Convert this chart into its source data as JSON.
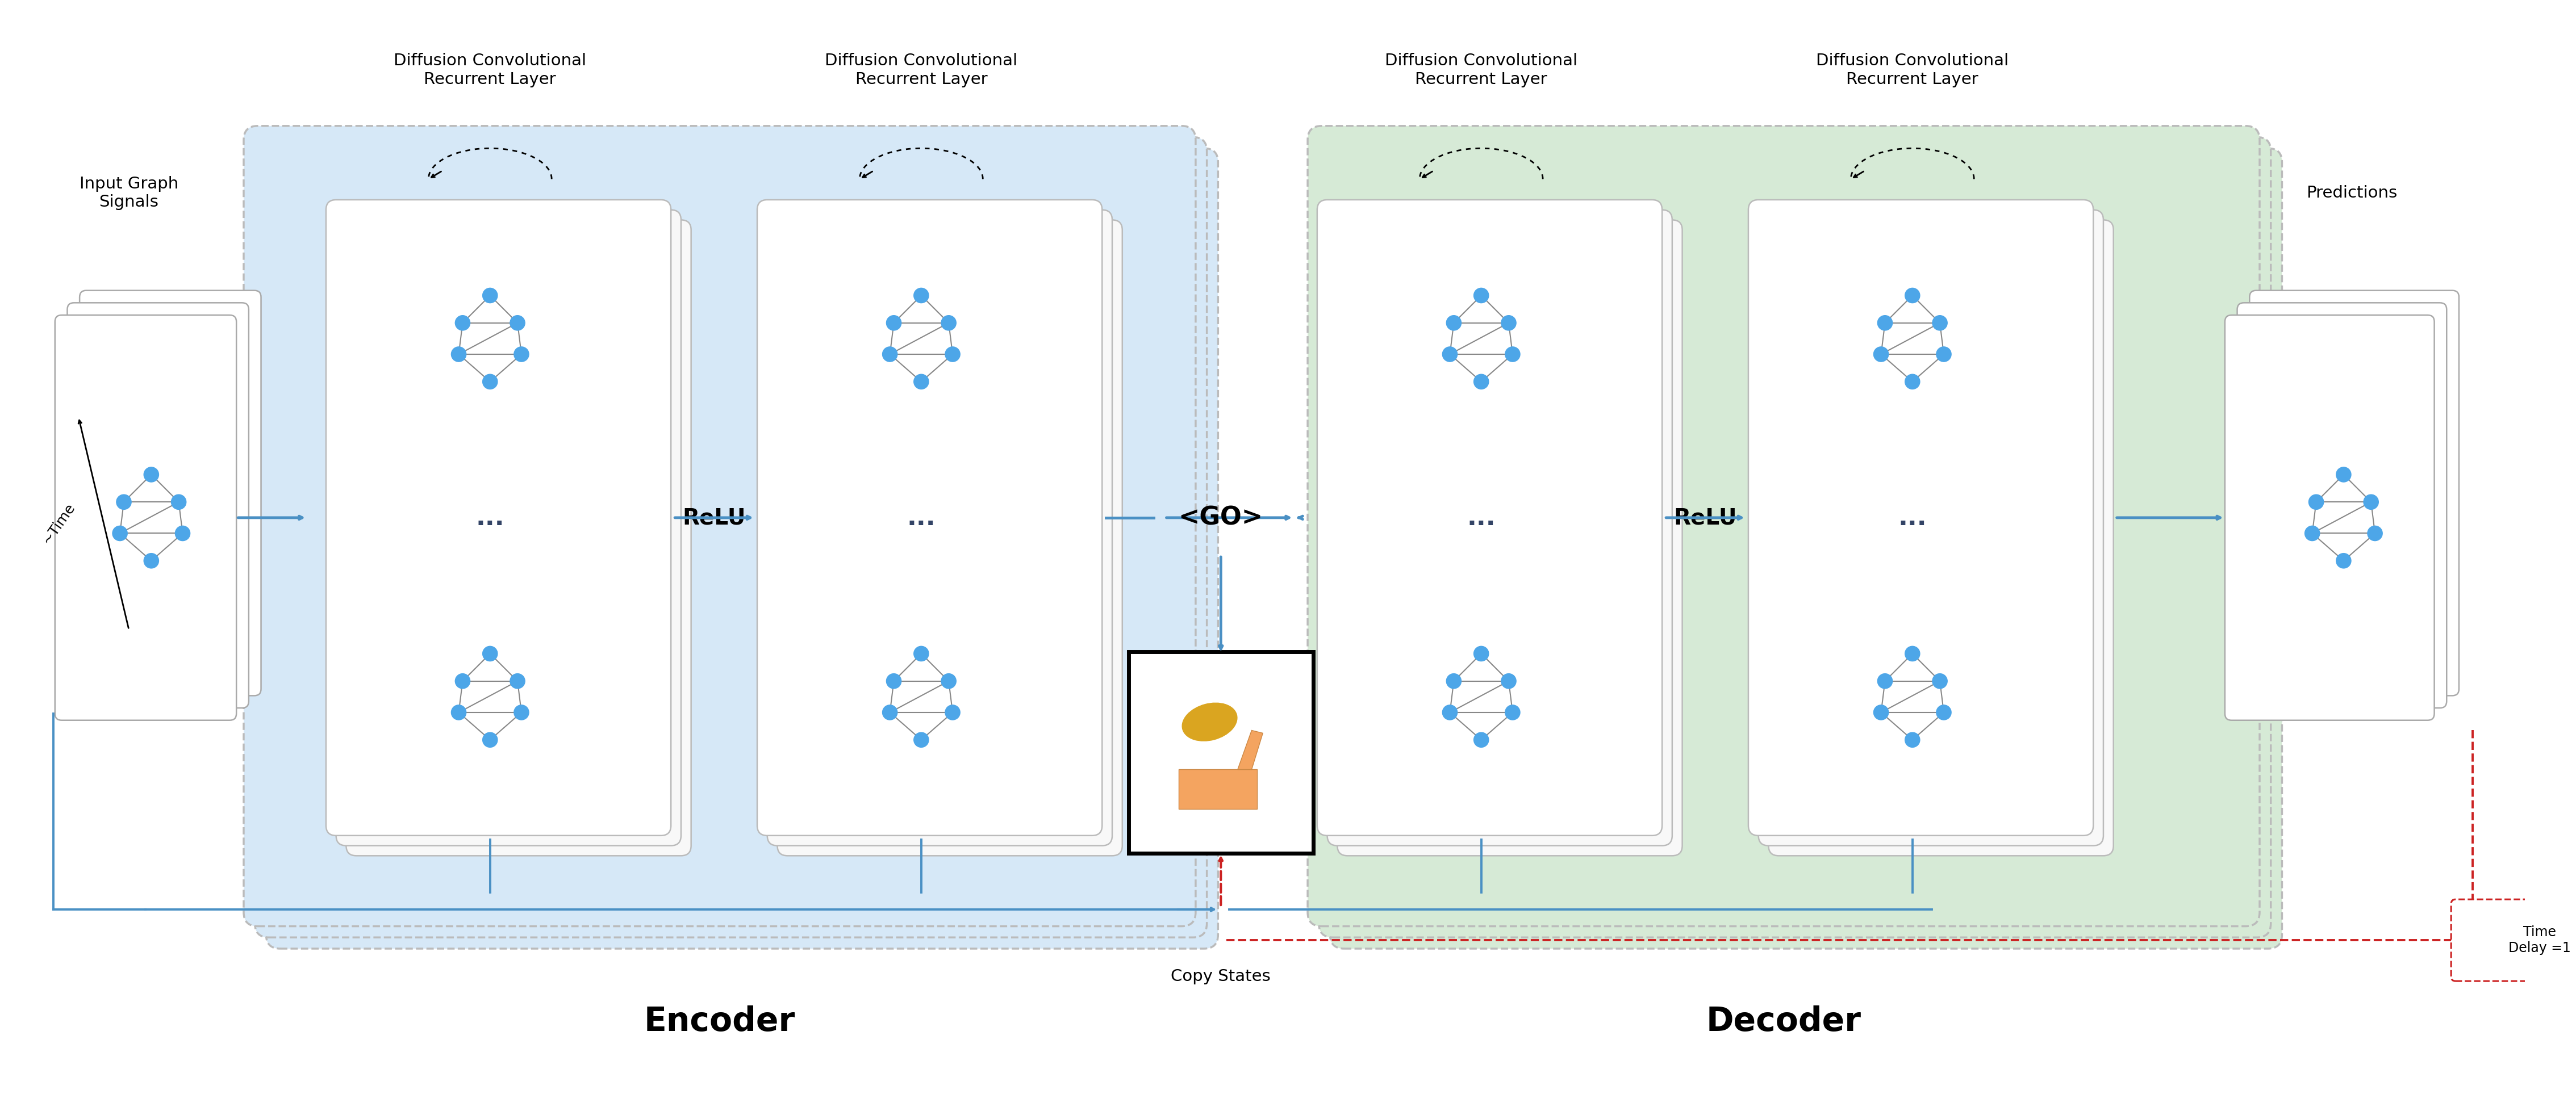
{
  "bg_color": "#ffffff",
  "encoder_bg": "#d6e8f7",
  "decoder_bg": "#d6ead6",
  "inner_bg": "#ffffff",
  "panel_border": "#bbbbbb",
  "node_color": "#4da6e8",
  "edge_color": "#888888",
  "arrow_color": "#4a90c4",
  "dashed_red": "#cc2222",
  "encoder_label": "Encoder",
  "decoder_label": "Decoder",
  "copy_states_label": "Copy States",
  "go_label": "<GO>",
  "relu_label": "ReLU",
  "time_delay_label": "Time\nDelay =1",
  "input_label": "Input Graph\nSignals",
  "predictions_label": "Predictions",
  "layer_label": "Diffusion Convolutional\nRecurrent Layer",
  "dots": "...",
  "time_label": "~Time"
}
